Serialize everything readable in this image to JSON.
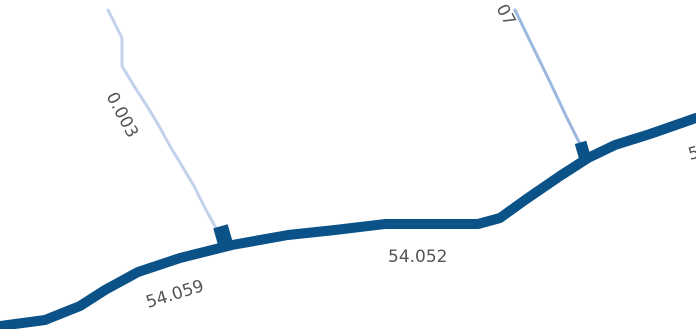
{
  "diagram": {
    "type": "sankey-flow-map",
    "colors": {
      "main_stream": "#0a5288",
      "tributary_left": "#c3d2ea",
      "tributary_right": "#9ab8e0",
      "junction": "#0a5288",
      "label": "#555555",
      "background": "#ffffff"
    },
    "flows": [
      {
        "id": "main-left",
        "label": "54.059"
      },
      {
        "id": "main-middle",
        "label": "54.052"
      },
      {
        "id": "main-right",
        "label": "5"
      },
      {
        "id": "tributary-left",
        "label": "0.003"
      },
      {
        "id": "tributary-right",
        "label": "07"
      }
    ]
  }
}
